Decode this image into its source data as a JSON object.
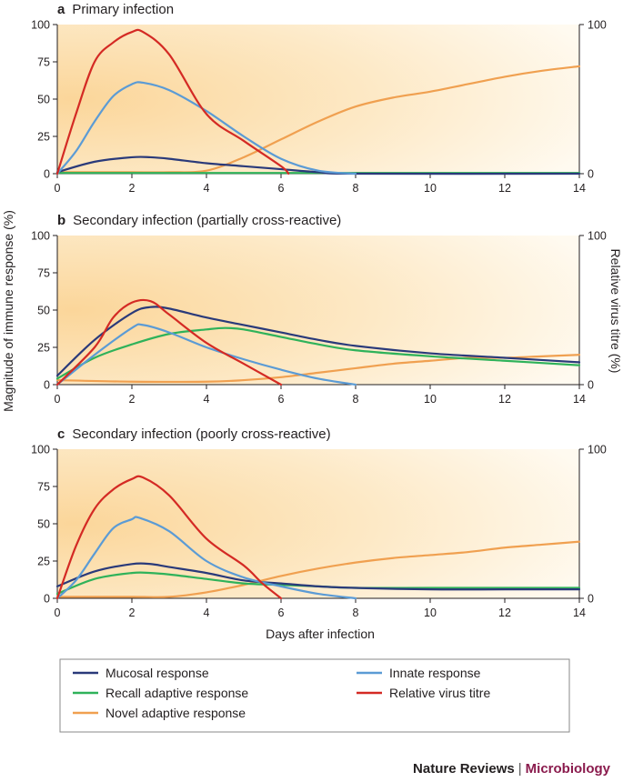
{
  "chart_data": [
    {
      "type": "line",
      "letter": "a",
      "title": "Primary infection",
      "xlim": [
        0,
        14
      ],
      "ylim": [
        0,
        100
      ],
      "y2lim": [
        0,
        100
      ],
      "x_ticks": [
        0,
        2,
        4,
        6,
        8,
        10,
        12,
        14
      ],
      "y_ticks": [
        0,
        25,
        50,
        75,
        100
      ],
      "y2_ticks": [
        0,
        100
      ],
      "series": [
        {
          "key": "novel",
          "x": [
            0,
            1,
            2,
            3,
            4,
            5,
            6,
            7,
            8,
            9,
            10,
            11,
            12,
            13,
            14
          ],
          "y": [
            1,
            1,
            1,
            1,
            2,
            11,
            23,
            35,
            45,
            51,
            55,
            60,
            65,
            69,
            72
          ]
        },
        {
          "key": "recall",
          "x": [
            0,
            14
          ],
          "y": [
            0.5,
            0.5
          ]
        },
        {
          "key": "mucosal",
          "x": [
            0,
            1,
            2,
            2.5,
            3,
            4,
            5,
            6,
            7,
            8,
            14
          ],
          "y": [
            1,
            8,
            11,
            11,
            10,
            7,
            5,
            3,
            1,
            0,
            0
          ]
        },
        {
          "key": "innate",
          "x": [
            0,
            0.5,
            1,
            1.5,
            2,
            2.3,
            3,
            4,
            5,
            6,
            7,
            8
          ],
          "y": [
            0,
            15,
            35,
            52,
            60,
            61,
            56,
            42,
            25,
            10,
            2,
            0
          ]
        },
        {
          "key": "titre",
          "x": [
            0,
            0.5,
            1,
            1.5,
            2,
            2.3,
            3,
            4,
            5,
            6,
            6.2
          ],
          "y": [
            0,
            40,
            75,
            88,
            95,
            95,
            80,
            40,
            22,
            5,
            0
          ]
        }
      ]
    },
    {
      "type": "line",
      "letter": "b",
      "title": "Secondary infection (partially cross-reactive)",
      "xlim": [
        0,
        14
      ],
      "ylim": [
        0,
        100
      ],
      "y2lim": [
        0,
        100
      ],
      "x_ticks": [
        0,
        2,
        4,
        6,
        8,
        10,
        12,
        14
      ],
      "y_ticks": [
        0,
        25,
        50,
        75,
        100
      ],
      "y2_ticks": [
        0,
        100
      ],
      "series": [
        {
          "key": "novel",
          "x": [
            0,
            2,
            4,
            5,
            6,
            7,
            8,
            9,
            10,
            11,
            12,
            13,
            14
          ],
          "y": [
            3,
            2,
            2,
            3,
            5,
            8,
            11,
            14,
            16,
            18,
            18,
            19,
            20
          ]
        },
        {
          "key": "recall",
          "x": [
            0,
            1,
            2,
            3,
            4,
            4.5,
            5,
            6,
            7,
            8,
            10,
            12,
            14
          ],
          "y": [
            4,
            18,
            27,
            34,
            37,
            38,
            37,
            32,
            27,
            23,
            19,
            16,
            13
          ]
        },
        {
          "key": "mucosal",
          "x": [
            0,
            1,
            2,
            2.5,
            3,
            4,
            5,
            6,
            7,
            8,
            10,
            12,
            14
          ],
          "y": [
            6,
            30,
            48,
            52,
            51,
            45,
            40,
            35,
            30,
            26,
            21,
            18,
            15
          ]
        },
        {
          "key": "innate",
          "x": [
            0,
            1,
            2,
            2.3,
            3,
            4,
            5,
            6,
            7,
            8
          ],
          "y": [
            0,
            20,
            38,
            40,
            35,
            25,
            17,
            10,
            4,
            0
          ]
        },
        {
          "key": "titre",
          "x": [
            0,
            1,
            1.5,
            2,
            2.5,
            3,
            4,
            5,
            6
          ],
          "y": [
            0,
            25,
            45,
            55,
            56,
            47,
            28,
            14,
            0
          ]
        }
      ]
    },
    {
      "type": "line",
      "letter": "c",
      "title": "Secondary infection (poorly cross-reactive)",
      "xlim": [
        0,
        14
      ],
      "ylim": [
        0,
        100
      ],
      "y2lim": [
        0,
        100
      ],
      "x_ticks": [
        0,
        2,
        4,
        6,
        8,
        10,
        12,
        14
      ],
      "y_ticks": [
        0,
        25,
        50,
        75,
        100
      ],
      "y2_ticks": [
        0,
        100
      ],
      "series": [
        {
          "key": "novel",
          "x": [
            0,
            2,
            3,
            4,
            5,
            6,
            7,
            8,
            9,
            10,
            11,
            12,
            13,
            14
          ],
          "y": [
            1,
            1,
            1,
            4,
            9,
            15,
            20,
            24,
            27,
            29,
            31,
            34,
            36,
            38
          ]
        },
        {
          "key": "recall",
          "x": [
            0,
            1,
            2,
            2.5,
            3,
            4,
            5,
            6,
            7,
            8,
            10,
            12,
            14
          ],
          "y": [
            3,
            13,
            17,
            17,
            16,
            13,
            10,
            9,
            8,
            7,
            7,
            7,
            7
          ]
        },
        {
          "key": "mucosal",
          "x": [
            0,
            1,
            2,
            2.5,
            3,
            4,
            5,
            6,
            7,
            8,
            10,
            12,
            14
          ],
          "y": [
            8,
            18,
            23,
            23,
            21,
            17,
            12,
            10,
            8,
            7,
            6,
            6,
            6
          ]
        },
        {
          "key": "innate",
          "x": [
            0,
            0.5,
            1,
            1.5,
            2,
            2.2,
            3,
            4,
            5,
            6,
            7,
            8
          ],
          "y": [
            0,
            12,
            30,
            47,
            53,
            54,
            45,
            25,
            14,
            8,
            3,
            0
          ]
        },
        {
          "key": "titre",
          "x": [
            0,
            0.5,
            1,
            1.5,
            2,
            2.3,
            3,
            4,
            5,
            5.5,
            6
          ],
          "y": [
            0,
            35,
            60,
            73,
            80,
            81,
            69,
            40,
            22,
            10,
            0
          ]
        }
      ]
    }
  ],
  "series_styles": {
    "mucosal": {
      "name": "Mucosal response",
      "color": "#2a3a7a"
    },
    "recall": {
      "name": "Recall adaptive response",
      "color": "#2fb25a"
    },
    "novel": {
      "name": "Novel adaptive response",
      "color": "#f0a050"
    },
    "innate": {
      "name": "Innate response",
      "color": "#5b9bd5"
    },
    "titre": {
      "name": "Relative virus titre",
      "color": "#d42a24"
    }
  },
  "legend": {
    "items": [
      {
        "key": "mucosal",
        "label": "Mucosal response"
      },
      {
        "key": "recall",
        "label": "Recall adaptive response"
      },
      {
        "key": "novel",
        "label": "Novel adaptive response"
      },
      {
        "key": "innate",
        "label": "Innate response"
      },
      {
        "key": "titre",
        "label": "Relative virus titre"
      }
    ]
  },
  "axes": {
    "xlabel": "Days after infection",
    "ylabel": "Magnitude of immune response (%)",
    "y2label": "Relative virus titre (%)"
  },
  "brand": {
    "journal": "Nature Reviews",
    "separator": "|",
    "section": "Microbiology",
    "journal_color": "#231f20",
    "section_color": "#8a1b4d"
  }
}
